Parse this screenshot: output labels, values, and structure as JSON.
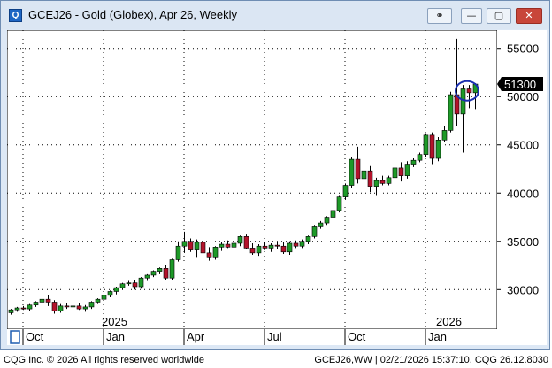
{
  "window": {
    "title": "GCEJ26 - Gold (Globex), Apr 26, Weekly",
    "buttons": {
      "link": "⚭",
      "minimize": "—",
      "maximize": "▢",
      "close": "✕"
    }
  },
  "status": {
    "left": "CQG Inc. © 2026 All rights reserved worldwide",
    "right": "GCEJ26,WW | 02/21/2026 15:37:10, CQG 26.12.8030"
  },
  "colors": {
    "up": "#1e9a28",
    "down": "#b3132b",
    "highlight_circle": "#1a2fb0",
    "last_price_bg": "#000000"
  },
  "chart_data": {
    "type": "candlestick",
    "title": "GCEJ26 - Gold (Globex), Apr 26, Weekly",
    "ylim": [
      25900,
      56900
    ],
    "price_ticks": [
      30000,
      35000,
      40000,
      45000,
      50000,
      55000
    ],
    "last_price": "51300",
    "year_labels": [
      {
        "label": "2025",
        "week": 15
      },
      {
        "label": "2026",
        "week": 69
      }
    ],
    "month_labels": [
      {
        "label": "Oct",
        "week": 2
      },
      {
        "label": "Jan",
        "week": 15
      },
      {
        "label": "Apr",
        "week": 28
      },
      {
        "label": "Jul",
        "week": 41
      },
      {
        "label": "Oct",
        "week": 54
      },
      {
        "label": "Jan",
        "week": 67
      }
    ],
    "highlight_week": 74,
    "candles": [
      {
        "o": 27600,
        "h": 28000,
        "l": 27400,
        "c": 27900
      },
      {
        "o": 27900,
        "h": 28200,
        "l": 27700,
        "c": 28100
      },
      {
        "o": 28100,
        "h": 28300,
        "l": 27900,
        "c": 28000
      },
      {
        "o": 28000,
        "h": 28500,
        "l": 27800,
        "c": 28400
      },
      {
        "o": 28400,
        "h": 28800,
        "l": 28200,
        "c": 28700
      },
      {
        "o": 28700,
        "h": 29100,
        "l": 28500,
        "c": 29000
      },
      {
        "o": 29000,
        "h": 29400,
        "l": 28300,
        "c": 28700
      },
      {
        "o": 28700,
        "h": 28900,
        "l": 27500,
        "c": 27800
      },
      {
        "o": 27800,
        "h": 28500,
        "l": 27600,
        "c": 28300
      },
      {
        "o": 28300,
        "h": 28600,
        "l": 28000,
        "c": 28200
      },
      {
        "o": 28200,
        "h": 28500,
        "l": 27900,
        "c": 28300
      },
      {
        "o": 28300,
        "h": 28600,
        "l": 27900,
        "c": 28000
      },
      {
        "o": 28000,
        "h": 28400,
        "l": 27700,
        "c": 28200
      },
      {
        "o": 28200,
        "h": 28800,
        "l": 28000,
        "c": 28700
      },
      {
        "o": 28700,
        "h": 29100,
        "l": 28500,
        "c": 29000
      },
      {
        "o": 29000,
        "h": 29500,
        "l": 28800,
        "c": 29400
      },
      {
        "o": 29400,
        "h": 29900,
        "l": 29200,
        "c": 29800
      },
      {
        "o": 29800,
        "h": 30300,
        "l": 29500,
        "c": 30200
      },
      {
        "o": 30200,
        "h": 30700,
        "l": 30000,
        "c": 30600
      },
      {
        "o": 30600,
        "h": 30900,
        "l": 30400,
        "c": 30700
      },
      {
        "o": 30700,
        "h": 31000,
        "l": 30000,
        "c": 30300
      },
      {
        "o": 30300,
        "h": 31300,
        "l": 30100,
        "c": 31200
      },
      {
        "o": 31200,
        "h": 31600,
        "l": 30900,
        "c": 31500
      },
      {
        "o": 31500,
        "h": 32000,
        "l": 31300,
        "c": 31900
      },
      {
        "o": 31900,
        "h": 32300,
        "l": 31600,
        "c": 32200
      },
      {
        "o": 32200,
        "h": 32500,
        "l": 31000,
        "c": 31200
      },
      {
        "o": 31200,
        "h": 33200,
        "l": 31000,
        "c": 33100
      },
      {
        "o": 33100,
        "h": 35000,
        "l": 32900,
        "c": 34500
      },
      {
        "o": 34500,
        "h": 36000,
        "l": 33800,
        "c": 35000
      },
      {
        "o": 35000,
        "h": 35300,
        "l": 33900,
        "c": 34100
      },
      {
        "o": 34100,
        "h": 35200,
        "l": 33300,
        "c": 34900
      },
      {
        "o": 34900,
        "h": 35200,
        "l": 33500,
        "c": 33800
      },
      {
        "o": 33800,
        "h": 34400,
        "l": 33000,
        "c": 33300
      },
      {
        "o": 33300,
        "h": 34500,
        "l": 33100,
        "c": 34400
      },
      {
        "o": 34400,
        "h": 34900,
        "l": 34000,
        "c": 34700
      },
      {
        "o": 34700,
        "h": 35100,
        "l": 34300,
        "c": 34400
      },
      {
        "o": 34400,
        "h": 35000,
        "l": 34000,
        "c": 34800
      },
      {
        "o": 34800,
        "h": 35600,
        "l": 34500,
        "c": 35500
      },
      {
        "o": 35500,
        "h": 35700,
        "l": 34200,
        "c": 34300
      },
      {
        "o": 34300,
        "h": 34800,
        "l": 33600,
        "c": 33800
      },
      {
        "o": 33800,
        "h": 34700,
        "l": 33500,
        "c": 34500
      },
      {
        "o": 34500,
        "h": 34900,
        "l": 34100,
        "c": 34300
      },
      {
        "o": 34300,
        "h": 34800,
        "l": 33900,
        "c": 34600
      },
      {
        "o": 34600,
        "h": 35000,
        "l": 34200,
        "c": 34500
      },
      {
        "o": 34500,
        "h": 34900,
        "l": 33700,
        "c": 33900
      },
      {
        "o": 33900,
        "h": 35000,
        "l": 33600,
        "c": 34800
      },
      {
        "o": 34800,
        "h": 35100,
        "l": 34300,
        "c": 34500
      },
      {
        "o": 34500,
        "h": 35200,
        "l": 34300,
        "c": 35000
      },
      {
        "o": 35000,
        "h": 35600,
        "l": 34700,
        "c": 35500
      },
      {
        "o": 35500,
        "h": 36700,
        "l": 35300,
        "c": 36500
      },
      {
        "o": 36500,
        "h": 37100,
        "l": 36300,
        "c": 36900
      },
      {
        "o": 36900,
        "h": 37600,
        "l": 36700,
        "c": 37500
      },
      {
        "o": 37500,
        "h": 38300,
        "l": 37300,
        "c": 38200
      },
      {
        "o": 38200,
        "h": 39800,
        "l": 38000,
        "c": 39600
      },
      {
        "o": 39600,
        "h": 41000,
        "l": 39300,
        "c": 40800
      },
      {
        "o": 40800,
        "h": 43700,
        "l": 40500,
        "c": 43500
      },
      {
        "o": 43500,
        "h": 44800,
        "l": 41000,
        "c": 41500
      },
      {
        "o": 41500,
        "h": 44500,
        "l": 40200,
        "c": 42300
      },
      {
        "o": 42300,
        "h": 42800,
        "l": 40100,
        "c": 40700
      },
      {
        "o": 40700,
        "h": 41600,
        "l": 39800,
        "c": 41300
      },
      {
        "o": 41300,
        "h": 41800,
        "l": 40800,
        "c": 41000
      },
      {
        "o": 41000,
        "h": 41800,
        "l": 40800,
        "c": 41600
      },
      {
        "o": 41600,
        "h": 42900,
        "l": 41300,
        "c": 42600
      },
      {
        "o": 42600,
        "h": 43200,
        "l": 41200,
        "c": 41800
      },
      {
        "o": 41800,
        "h": 43300,
        "l": 41500,
        "c": 43000
      },
      {
        "o": 43000,
        "h": 43600,
        "l": 42700,
        "c": 43400
      },
      {
        "o": 43400,
        "h": 44200,
        "l": 43200,
        "c": 44000
      },
      {
        "o": 44000,
        "h": 46200,
        "l": 43700,
        "c": 46000
      },
      {
        "o": 46000,
        "h": 46300,
        "l": 43000,
        "c": 43600
      },
      {
        "o": 43600,
        "h": 45800,
        "l": 43300,
        "c": 45500
      },
      {
        "o": 45500,
        "h": 47000,
        "l": 45300,
        "c": 46500
      },
      {
        "o": 46500,
        "h": 50500,
        "l": 46300,
        "c": 50200
      },
      {
        "o": 50200,
        "h": 56000,
        "l": 47000,
        "c": 48200
      },
      {
        "o": 48200,
        "h": 51200,
        "l": 44200,
        "c": 50800
      },
      {
        "o": 50800,
        "h": 51200,
        "l": 48800,
        "c": 50400
      },
      {
        "o": 50400,
        "h": 51400,
        "l": 48700,
        "c": 51300
      }
    ]
  }
}
